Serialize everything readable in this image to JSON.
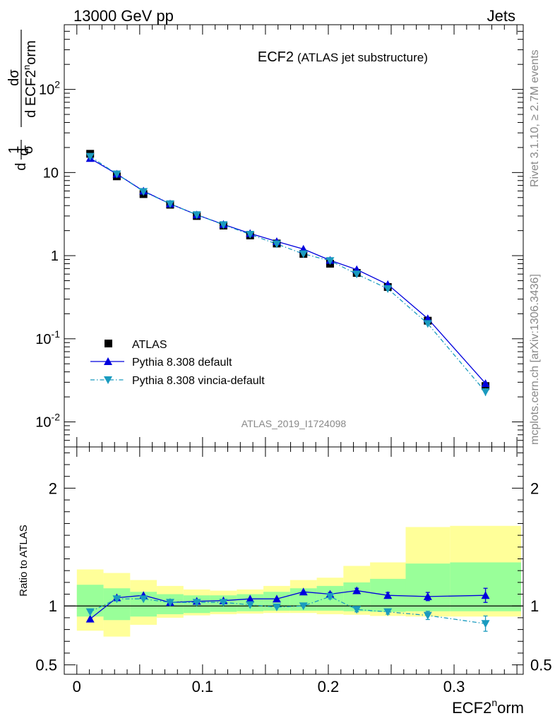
{
  "header": {
    "left": "13000 GeV pp",
    "right": "Jets"
  },
  "side_labels": {
    "rivet": "Rivet 3.1.10, ≥ 2.7M events",
    "mcplots": "mcplots.cern.ch [arXiv:1306.3436]"
  },
  "chart_data": [
    {
      "type": "line",
      "title": "ECF2",
      "subtitle": "(ATLAS jet substructure)",
      "ylabel": "1/σ dσ/d ECF2^norm",
      "xlabel": "ECF2^norm",
      "yscale": "log",
      "ylim": [
        0.005,
        600
      ],
      "xlim": [
        -0.01,
        0.355
      ],
      "annotation": "ATLAS_2019_I1724098",
      "legend_position": "lower-left",
      "y_tick_labels": [
        "10^-2",
        "10^-1",
        "1",
        "10",
        "10^2"
      ],
      "x": [
        0.0106,
        0.0318,
        0.053,
        0.0742,
        0.0954,
        0.1166,
        0.1378,
        0.159,
        0.1802,
        0.2014,
        0.2226,
        0.2473,
        0.2791,
        0.325
      ],
      "x_bins": [
        [
          0.0,
          0.0212
        ],
        [
          0.0212,
          0.0424
        ],
        [
          0.0424,
          0.0636
        ],
        [
          0.0636,
          0.0848
        ],
        [
          0.0848,
          0.106
        ],
        [
          0.106,
          0.1272
        ],
        [
          0.1272,
          0.1484
        ],
        [
          0.1484,
          0.1696
        ],
        [
          0.1696,
          0.1908
        ],
        [
          0.1908,
          0.212
        ],
        [
          0.212,
          0.2332
        ],
        [
          0.2332,
          0.2615
        ],
        [
          0.2615,
          0.2968
        ],
        [
          0.2968,
          0.3533
        ]
      ],
      "series": [
        {
          "name": "ATLAS",
          "marker": "square",
          "color": "#000000",
          "values": [
            16.8,
            9.0,
            5.5,
            4.1,
            3.0,
            2.3,
            1.75,
            1.4,
            1.05,
            0.8,
            0.62,
            0.42,
            0.165,
            0.027
          ]
        },
        {
          "name": "Pythia 8.308 default",
          "marker": "triangle-up",
          "line": "solid",
          "color": "#0000dd",
          "values": [
            14.8,
            9.6,
            6.0,
            4.2,
            3.1,
            2.38,
            1.85,
            1.48,
            1.2,
            0.88,
            0.68,
            0.45,
            0.175,
            0.029
          ]
        },
        {
          "name": "Pythia 8.308 vincia-default",
          "marker": "triangle-down",
          "line": "dash-dot",
          "color": "#1a9bbf",
          "values": [
            15.6,
            9.6,
            5.9,
            4.2,
            3.1,
            2.35,
            1.8,
            1.38,
            1.05,
            0.87,
            0.6,
            0.4,
            0.152,
            0.023
          ]
        }
      ]
    },
    {
      "type": "line",
      "ylabel": "Ratio to ATLAS",
      "xlabel": "ECF2^norm",
      "ylim": [
        0.42,
        2.35
      ],
      "y_tick_labels": [
        "0.5",
        "1",
        "2"
      ],
      "x_tick_labels": [
        "0",
        "0.1",
        "0.2",
        "0.3"
      ],
      "reference_line": 1,
      "band_colors": {
        "inner": "#99ff99",
        "outer": "#ffff99"
      },
      "bands": {
        "inner_low": [
          0.91,
          0.88,
          0.91,
          0.93,
          0.94,
          0.95,
          0.955,
          0.96,
          0.96,
          0.96,
          0.955,
          0.95,
          0.955,
          0.955
        ],
        "inner_high": [
          1.18,
          1.15,
          1.12,
          1.1,
          1.09,
          1.09,
          1.1,
          1.12,
          1.15,
          1.17,
          1.2,
          1.23,
          1.36,
          1.37
        ],
        "outer_low": [
          0.79,
          0.74,
          0.84,
          0.9,
          0.92,
          0.93,
          0.935,
          0.94,
          0.94,
          0.93,
          0.925,
          0.915,
          0.91,
          0.91
        ],
        "outer_high": [
          1.31,
          1.28,
          1.22,
          1.17,
          1.14,
          1.13,
          1.14,
          1.17,
          1.22,
          1.24,
          1.34,
          1.37,
          1.67,
          1.68
        ]
      },
      "series": [
        {
          "name": "Pythia 8.308 default",
          "color": "#0000dd",
          "values": [
            0.89,
            1.07,
            1.09,
            1.03,
            1.04,
            1.045,
            1.06,
            1.06,
            1.12,
            1.1,
            1.13,
            1.09,
            1.08,
            1.09
          ],
          "errors": [
            0,
            0,
            0,
            0,
            0,
            0,
            0,
            0,
            0,
            0.015,
            0.02,
            0.025,
            0.035,
            0.06
          ]
        },
        {
          "name": "Pythia 8.308 vincia-default",
          "color": "#1a9bbf",
          "values": [
            0.95,
            1.06,
            1.06,
            1.03,
            1.03,
            1.03,
            1.01,
            0.99,
            1.0,
            1.08,
            0.97,
            0.95,
            0.92,
            0.85
          ],
          "errors": [
            0,
            0,
            0,
            0,
            0,
            0,
            0,
            0,
            0,
            0.02,
            0.02,
            0.02,
            0.035,
            0.065
          ]
        }
      ]
    }
  ]
}
